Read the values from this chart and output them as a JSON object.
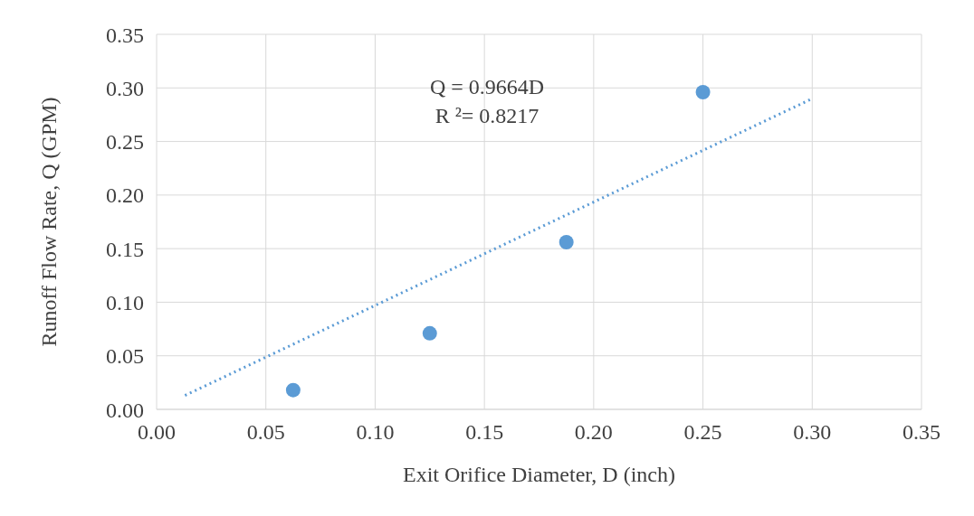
{
  "chart_data": {
    "type": "scatter",
    "xlabel": "Exit Orifice Diameter, D (inch)",
    "ylabel": "Runoff Flow Rate, Q (GPM)",
    "x": [
      0.0625,
      0.125,
      0.1875,
      0.25
    ],
    "series": [
      {
        "color": "#5b9bd5",
        "values": [
          0.018,
          0.071,
          0.156,
          0.296
        ]
      },
      {
        "type": "line",
        "color": "#5b9bd5",
        "x": [
          0.013,
          0.3
        ],
        "values": [
          0.013,
          0.29
        ],
        "line_style": "dotted",
        "marker": "none"
      }
    ],
    "annotations": [
      "Q = 0.9664D",
      "R ²= 0.8217"
    ],
    "xlim": [
      0,
      0.35
    ],
    "ylim": [
      0,
      0.35
    ],
    "xticks": [
      {
        "value": 0,
        "label": "0.00"
      },
      {
        "value": 0.05,
        "label": "0.05"
      },
      {
        "value": 0.1,
        "label": "0.10"
      },
      {
        "value": 0.15,
        "label": "0.15"
      },
      {
        "value": 0.2,
        "label": "0.20"
      },
      {
        "value": 0.25,
        "label": "0.25"
      },
      {
        "value": 0.3,
        "label": "0.30"
      },
      {
        "value": 0.35,
        "label": "0.35"
      }
    ],
    "yticks": [
      {
        "value": 0,
        "label": "0.00"
      },
      {
        "value": 0.05,
        "label": "0.05"
      },
      {
        "value": 0.1,
        "label": "0.10"
      },
      {
        "value": 0.15,
        "label": "0.15"
      },
      {
        "value": 0.2,
        "label": "0.20"
      },
      {
        "value": 0.25,
        "label": "0.25"
      },
      {
        "value": 0.3,
        "label": "0.30"
      },
      {
        "value": 0.35,
        "label": "0.35"
      }
    ],
    "grid": true,
    "marker": "circle",
    "legend": false
  }
}
